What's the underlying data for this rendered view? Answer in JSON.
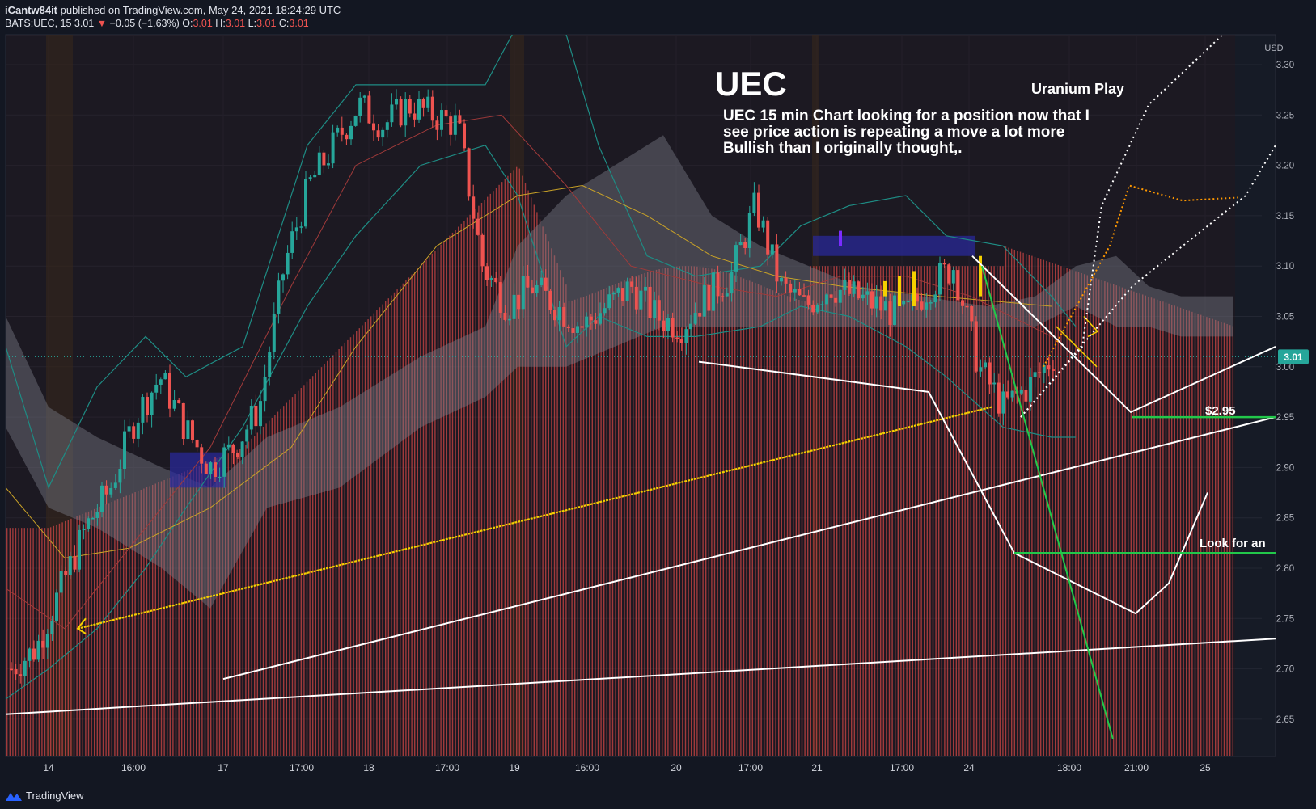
{
  "header": {
    "author": "iCantw84it",
    "published_text": "published on TradingView.com, May 24, 2021 18:24:29 UTC",
    "symbol": "BATS:UEC, 15",
    "last": "3.01",
    "arrow": "▼",
    "change": "−0.05 (−1.63%)",
    "o_label": "O:",
    "o": "3.01",
    "h_label": "H:",
    "h": "3.01",
    "l_label": "L:",
    "l": "3.01",
    "c_label": "C:",
    "c": "3.01"
  },
  "annotations": {
    "ticker": "UEC",
    "note_line1": "UEC 15 min Chart looking for a position now that I",
    "note_line2": "see price action is repeating a move a lot more",
    "note_line3": "Bullish than I originally thought,.",
    "uranium": "Uranium Play",
    "level": "$2.95",
    "look_for": "Look for an"
  },
  "price_axis": {
    "currency": "USD",
    "current_price": "3.01"
  },
  "footer": {
    "brand": "TradingView"
  },
  "colors": {
    "background": "#131722",
    "up": "#26a69a",
    "down": "#ef5350",
    "cloud": "#787b86",
    "bollinger": "#1e8c84",
    "yellow": "#f5d000",
    "green_line": "#22c84a",
    "white_line": "#ffffff",
    "orange": "#ff9800"
  },
  "chart_data": {
    "type": "candlestick",
    "title": "UEC",
    "timeframe": "15",
    "y_range": [
      2.63,
      3.34
    ],
    "y_ticks": [
      3.3,
      3.25,
      3.2,
      3.15,
      3.1,
      3.05,
      3.0,
      2.95,
      2.9,
      2.85,
      2.8,
      2.75,
      2.7,
      2.65
    ],
    "x_tick_labels": [
      "14",
      "16:00",
      "17",
      "17:00",
      "18",
      "17:00",
      "19",
      "16:00",
      "20",
      "17:00",
      "21",
      "17:00",
      "24",
      "18:00",
      "21:00",
      "25"
    ],
    "ohlc_last": {
      "open": 3.01,
      "high": 3.01,
      "low": 3.01,
      "close": 3.01
    },
    "close_path_approx": [
      2.7,
      2.72,
      2.78,
      2.84,
      2.88,
      2.95,
      2.99,
      2.94,
      2.9,
      2.92,
      2.96,
      3.1,
      3.18,
      3.22,
      3.26,
      3.24,
      3.26,
      3.25,
      3.24,
      3.1,
      3.06,
      3.08,
      3.06,
      3.04,
      3.06,
      3.08,
      3.05,
      3.04,
      3.07,
      3.09,
      3.16,
      3.08,
      3.06,
      3.08,
      3.07,
      3.06,
      3.05,
      3.08,
      3.1,
      3.0,
      2.96,
      2.98,
      3.01
    ],
    "horizontal_levels": [
      2.95,
      2.815
    ],
    "level_labels": [
      "$2.95"
    ]
  }
}
